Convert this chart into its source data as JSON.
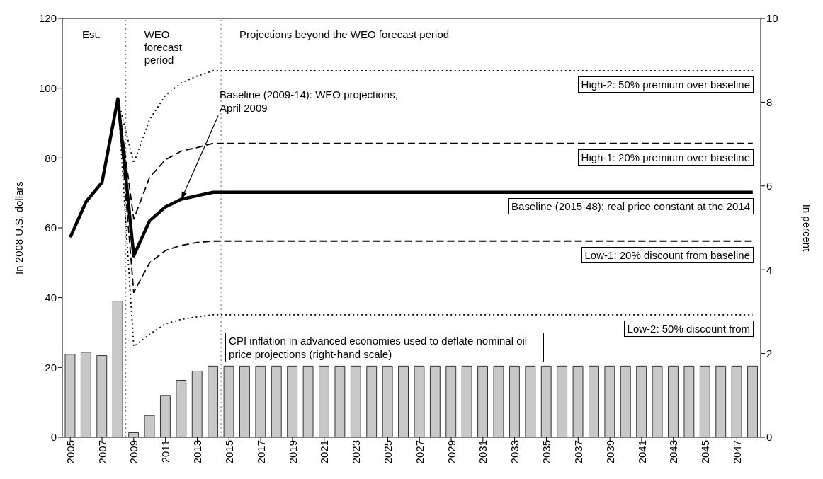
{
  "chart_data": {
    "type": "line",
    "ylabel": "In 2008 U.S. dollars",
    "y2label": "In percent",
    "x": [
      2005,
      2006,
      2007,
      2008,
      2009,
      2010,
      2011,
      2012,
      2013,
      2014,
      2015,
      2016,
      2017,
      2018,
      2019,
      2020,
      2021,
      2022,
      2023,
      2024,
      2025,
      2026,
      2027,
      2028,
      2029,
      2030,
      2031,
      2032,
      2033,
      2034,
      2035,
      2036,
      2037,
      2038,
      2039,
      2040,
      2041,
      2042,
      2043,
      2044,
      2045,
      2046,
      2047,
      2048
    ],
    "xlim": [
      2004.5,
      2048.5
    ],
    "xticks": [
      2005,
      2007,
      2009,
      2011,
      2013,
      2015,
      2017,
      2019,
      2021,
      2023,
      2025,
      2027,
      2029,
      2031,
      2033,
      2035,
      2037,
      2039,
      2041,
      2043,
      2045,
      2047
    ],
    "ylim": [
      0,
      120
    ],
    "yticks": [
      0,
      20,
      40,
      60,
      80,
      100,
      120
    ],
    "y2lim": [
      0,
      10
    ],
    "y2ticks": [
      0,
      2,
      4,
      6,
      8,
      10
    ],
    "legend": false,
    "marker": "none",
    "series": [
      {
        "name": "CPI inflation in advanced economies used to deflate nominal oil price projections (right-hand scale)",
        "type": "bar",
        "axis": "y2",
        "color": "#c8c8c8",
        "values": [
          1.98,
          2.03,
          1.95,
          3.25,
          0.11,
          0.52,
          1.0,
          1.36,
          1.58,
          1.7,
          1.7,
          1.7,
          1.7,
          1.7,
          1.7,
          1.7,
          1.7,
          1.7,
          1.7,
          1.7,
          1.7,
          1.7,
          1.7,
          1.7,
          1.7,
          1.7,
          1.7,
          1.7,
          1.7,
          1.7,
          1.7,
          1.7,
          1.7,
          1.7,
          1.7,
          1.7,
          1.7,
          1.7,
          1.7,
          1.7,
          1.7,
          1.7,
          1.7,
          1.7
        ]
      },
      {
        "name": "High-2: 50% premium over baseline",
        "line_style": "dotted",
        "color": "#000000",
        "values": [
          null,
          null,
          null,
          97,
          78.5,
          91,
          98,
          101.5,
          103.5,
          105,
          105,
          105,
          105,
          105,
          105,
          105,
          105,
          105,
          105,
          105,
          105,
          105,
          105,
          105,
          105,
          105,
          105,
          105,
          105,
          105,
          105,
          105,
          105,
          105,
          105,
          105,
          105,
          105,
          105,
          105,
          105,
          105,
          105,
          105
        ]
      },
      {
        "name": "High-1: 20% premium over baseline",
        "line_style": "dashed",
        "color": "#000000",
        "values": [
          null,
          null,
          null,
          97,
          62.5,
          74.5,
          79.5,
          82,
          83,
          84.2,
          84.2,
          84.2,
          84.2,
          84.2,
          84.2,
          84.2,
          84.2,
          84.2,
          84.2,
          84.2,
          84.2,
          84.2,
          84.2,
          84.2,
          84.2,
          84.2,
          84.2,
          84.2,
          84.2,
          84.2,
          84.2,
          84.2,
          84.2,
          84.2,
          84.2,
          84.2,
          84.2,
          84.2,
          84.2,
          84.2,
          84.2,
          84.2,
          84.2,
          84.2
        ]
      },
      {
        "name": "Low-1: 20% discount from baseline",
        "line_style": "dashed",
        "color": "#000000",
        "values": [
          null,
          null,
          null,
          97,
          41.5,
          50,
          53.5,
          55,
          55.8,
          56.2,
          56.2,
          56.2,
          56.2,
          56.2,
          56.2,
          56.2,
          56.2,
          56.2,
          56.2,
          56.2,
          56.2,
          56.2,
          56.2,
          56.2,
          56.2,
          56.2,
          56.2,
          56.2,
          56.2,
          56.2,
          56.2,
          56.2,
          56.2,
          56.2,
          56.2,
          56.2,
          56.2,
          56.2,
          56.2,
          56.2,
          56.2,
          56.2,
          56.2,
          56.2
        ]
      },
      {
        "name": "Low-2: 50% discount from",
        "line_style": "dotted",
        "color": "#000000",
        "values": [
          null,
          null,
          null,
          97,
          26,
          29.5,
          32.5,
          33.8,
          34.5,
          35.1,
          35.1,
          35.1,
          35.1,
          35.1,
          35.1,
          35.1,
          35.1,
          35.1,
          35.1,
          35.1,
          35.1,
          35.1,
          35.1,
          35.1,
          35.1,
          35.1,
          35.1,
          35.1,
          35.1,
          35.1,
          35.1,
          35.1,
          35.1,
          35.1,
          35.1,
          35.1,
          35.1,
          35.1,
          35.1,
          35.1,
          35.1,
          35.1,
          35.1,
          35.1
        ]
      },
      {
        "name": "Baseline (2015-48): real price constant at the 2014",
        "line_style": "solid",
        "color": "#000000",
        "values": [
          57.3,
          67.5,
          73,
          97,
          52,
          62,
          66,
          68.2,
          69.2,
          70.2,
          70.2,
          70.2,
          70.2,
          70.2,
          70.2,
          70.2,
          70.2,
          70.2,
          70.2,
          70.2,
          70.2,
          70.2,
          70.2,
          70.2,
          70.2,
          70.2,
          70.2,
          70.2,
          70.2,
          70.2,
          70.2,
          70.2,
          70.2,
          70.2,
          70.2,
          70.2,
          70.2,
          70.2,
          70.2,
          70.2,
          70.2,
          70.2,
          70.2,
          70.2
        ]
      }
    ],
    "ref_lines": [
      {
        "axis": "x",
        "value": 2008.5,
        "color": "#808080",
        "line_style": "dotted"
      },
      {
        "axis": "x",
        "value": 2014.5,
        "color": "#808080",
        "line_style": "dotted"
      }
    ],
    "annotations": [
      "Est.",
      "WEO forecast period",
      "Projections beyond the WEO forecast period",
      {
        "text": "Baseline (2009-14):  WEO projections, April 2009",
        "x": 2012,
        "y": 68.2
      }
    ]
  }
}
